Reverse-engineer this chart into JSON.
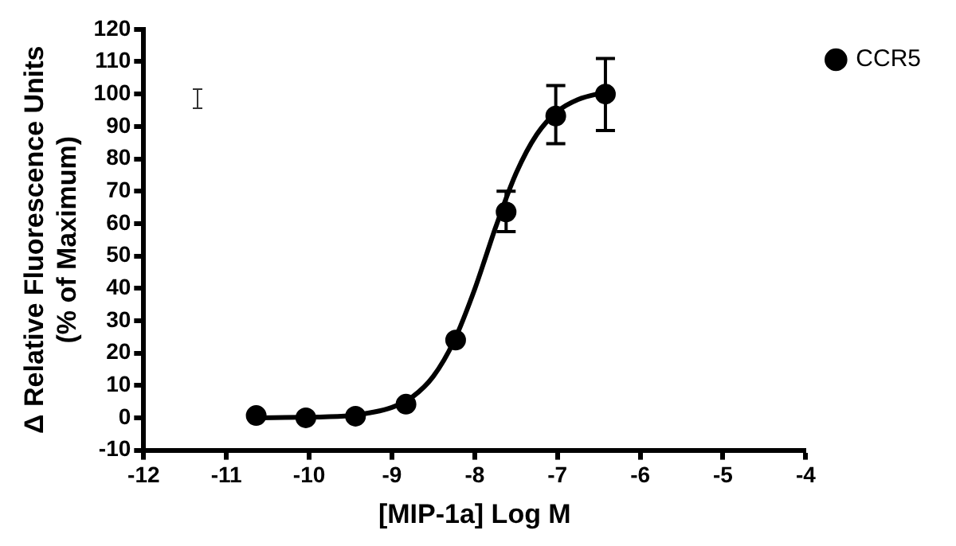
{
  "chart_data": {
    "type": "scatter",
    "xlabel": "[MIP-1a] Log M",
    "ylabel": "Δ Relative Fluorescence Units\n(% of Maximum)",
    "xlim": [
      -12,
      -4
    ],
    "xticks": [
      -12,
      -11,
      -10,
      -9,
      -8,
      -7,
      -6,
      -5,
      -4
    ],
    "ylim": [
      -10,
      120
    ],
    "yticks": [
      -10,
      0,
      10,
      20,
      30,
      40,
      50,
      60,
      70,
      80,
      90,
      100,
      110,
      120
    ],
    "grid": false,
    "legend": "top right",
    "marker": "circle",
    "series": [
      {
        "name": "CCR5",
        "color": "#000000",
        "x": [
          -10.64,
          -10.04,
          -9.44,
          -8.83,
          -8.23,
          -7.62,
          -7.02,
          -6.42
        ],
        "values": [
          0.7,
          0,
          0.5,
          4.2,
          24,
          63.6,
          93.2,
          100
        ],
        "errors": [
          null,
          null,
          null,
          null,
          null,
          [
            57.5,
            70
          ],
          [
            84.7,
            102.6
          ],
          [
            88.7,
            111
          ]
        ]
      },
      {
        "type": "line",
        "marker": "none",
        "color": "#000000",
        "x": [
          -10.64,
          -10,
          -9.5,
          -9,
          -8.75,
          -8.5,
          -8.25,
          -8,
          -7.85,
          -7.75,
          -7.5,
          -7.25,
          -7,
          -6.75,
          -6.42
        ],
        "values": [
          0,
          0.2,
          0.7,
          3.2,
          6.5,
          12.8,
          23.7,
          39.7,
          51,
          58.6,
          75.5,
          87.5,
          94.6,
          98.3,
          100.6
        ]
      }
    ]
  }
}
